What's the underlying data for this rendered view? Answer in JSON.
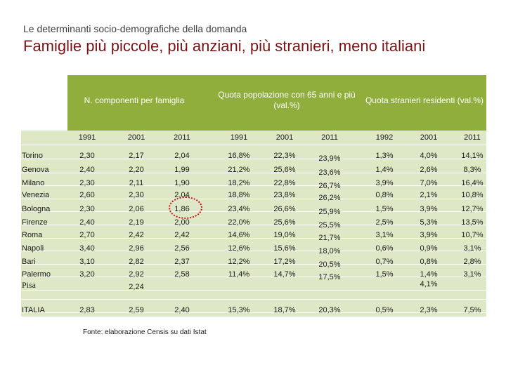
{
  "header": {
    "subtitle": "Le determinanti socio-demografiche della domanda",
    "title": "Famiglie più piccole, più anziani, più stranieri, meno italiani"
  },
  "table": {
    "groups": [
      {
        "label": "N. componenti per famiglia",
        "years": [
          "1991",
          "2001",
          "2011"
        ]
      },
      {
        "label": "Quota popolazione con 65 anni e più (val.%)",
        "years": [
          "1991",
          "2001",
          "2011"
        ]
      },
      {
        "label": "Quota stranieri residenti (val.%)",
        "years": [
          "1992",
          "2001",
          "2011"
        ]
      }
    ],
    "rows": [
      {
        "city": "Torino",
        "values": [
          "2,30",
          "2,17",
          "2,04",
          "16,8%",
          "22,3%",
          "23,9%",
          "1,3%",
          "4,0%",
          "14,1%"
        ]
      },
      {
        "city": "Genova",
        "values": [
          "2,40",
          "2,20",
          "1,99",
          "21,2%",
          "25,6%",
          "23,6%",
          "1,4%",
          "2,6%",
          "8,3%"
        ]
      },
      {
        "city": "Milano",
        "values": [
          "2,30",
          "2,11",
          "1,90",
          "18,2%",
          "22,8%",
          "26,7%",
          "3,9%",
          "7,0%",
          "16,4%"
        ]
      },
      {
        "city": "Venezia",
        "values": [
          "2,60",
          "2,30",
          "2,04",
          "18,8%",
          "23,8%",
          "26,2%",
          "0,8%",
          "2,1%",
          "10,8%"
        ]
      },
      {
        "city": "Bologna",
        "values": [
          "2,30",
          "2,06",
          "1,86",
          "23,4%",
          "26,6%",
          "25,9%",
          "1,5%",
          "3,9%",
          "12,7%"
        ]
      },
      {
        "city": "Firenze",
        "values": [
          "2,40",
          "2,19",
          "2,00",
          "22,0%",
          "25,6%",
          "25,5%",
          "2,5%",
          "5,3%",
          "13,5%"
        ]
      },
      {
        "city": "Roma",
        "values": [
          "2,70",
          "2,42",
          "2,42",
          "14,6%",
          "19,0%",
          "21,7%",
          "3,1%",
          "3,9%",
          "10,7%"
        ]
      },
      {
        "city": "Napoli",
        "values": [
          "3,40",
          "2,96",
          "2,56",
          "12,6%",
          "15,6%",
          "18,0%",
          "0,6%",
          "0,9%",
          "3,1%"
        ]
      },
      {
        "city": "Bari",
        "values": [
          "3,10",
          "2,82",
          "2,37",
          "12,2%",
          "17,2%",
          "20,5%",
          "0,7%",
          "0,8%",
          "2,8%"
        ]
      },
      {
        "city": "Palermo",
        "values": [
          "3,20",
          "2,92",
          "2,58",
          "11,4%",
          "14,7%",
          "17,5%",
          "1,5%",
          "1,4%",
          "3,1%"
        ]
      },
      {
        "city": "Pisa",
        "values": [
          "",
          "2,24",
          "",
          "",
          "",
          "",
          "",
          "4,1%",
          ""
        ]
      },
      {
        "city": "ITALIA",
        "values": [
          "2,83",
          "2,59",
          "2,40",
          "15,3%",
          "18,7%",
          "20,3%",
          "0,5%",
          "2,3%",
          "7,5%"
        ]
      }
    ]
  },
  "footer": {
    "source": "Fonte: elaborazione Censis su dati Istat"
  },
  "colors": {
    "title": "#7a1414",
    "table_header": "#8fae3c",
    "table_body": "#dfe8c6",
    "highlight_circle": "#c0181a"
  }
}
